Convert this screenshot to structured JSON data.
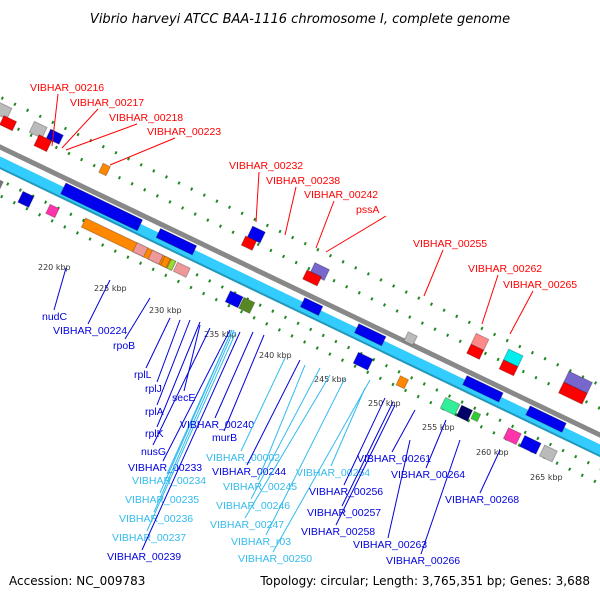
{
  "title": "Vibrio harveyi ATCC BAA-1116 chromosome I, complete genome",
  "footer": {
    "accession": "Accession: NC_009783",
    "topology": "Topology: circular; Length: 3,765,351 bp; Genes: 3,688"
  },
  "colors": {
    "forward_label": "#ff0000",
    "reverse_label": "#0000dd",
    "rna_label": "#33bbee",
    "backbone": "#888888",
    "cds_band": "#33ccff",
    "tick": "#228822"
  },
  "kbp_ticks": [
    "220 kbp",
    "225 kbp",
    "230 kbp",
    "235 kbp",
    "240 kbp",
    "245 kbp",
    "250 kbp",
    "255 kbp",
    "260 kbp",
    "265 kbp"
  ],
  "forward_labels": [
    "VIBHAR_00216",
    "VIBHAR_00217",
    "VIBHAR_00218",
    "VIBHAR_00223",
    "VIBHAR_00232",
    "VIBHAR_00238",
    "VIBHAR_00242",
    "pssA",
    "VIBHAR_00255",
    "VIBHAR_00262",
    "VIBHAR_00265"
  ],
  "reverse_labels": [
    "nudC",
    "VIBHAR_00224",
    "rpoB",
    "rplL",
    "rplJ",
    "secE",
    "rplA",
    "rplK",
    "nusG",
    "VIBHAR_00233",
    "VIBHAR_00234",
    "VIBHAR_00235",
    "VIBHAR_00236",
    "VIBHAR_00237",
    "VIBHAR_00239",
    "VIBHAR_00240",
    "murB",
    "VIBHAR_00002",
    "VIBHAR_00244",
    "VIBHAR_00245",
    "VIBHAR_00246",
    "VIBHAR_00247",
    "VIBHAR_r03",
    "VIBHAR_00250",
    "VIBHAR_00254",
    "VIBHAR_00256",
    "VIBHAR_00257",
    "VIBHAR_00258",
    "VIBHAR_00261",
    "VIBHAR_00264",
    "VIBHAR_00263",
    "VIBHAR_00266",
    "VIBHAR_00268"
  ],
  "rna_genes": [
    "VIBHAR_00234",
    "VIBHAR_00235",
    "VIBHAR_00236",
    "VIBHAR_00237",
    "VIBHAR_00002",
    "VIBHAR_00245",
    "VIBHAR_00246",
    "VIBHAR_00247",
    "VIBHAR_r03",
    "VIBHAR_00250",
    "VIBHAR_00254"
  ]
}
